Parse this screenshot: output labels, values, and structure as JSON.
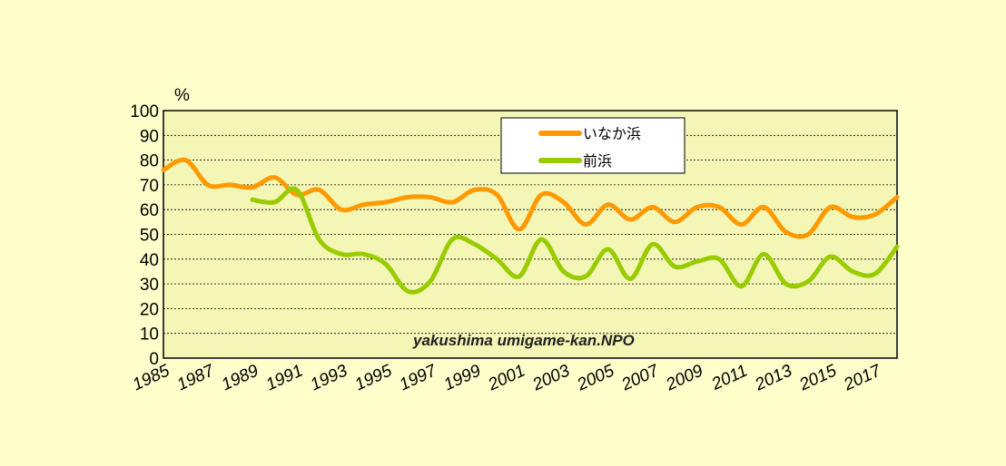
{
  "chart_data": {
    "type": "line",
    "title": "",
    "xlabel": "",
    "ylabel": "%",
    "ylim": [
      0,
      100
    ],
    "xlim": [
      1985,
      2018
    ],
    "yticks": [
      "0",
      "10",
      "20",
      "30",
      "40",
      "50",
      "60",
      "70",
      "80",
      "90",
      "100"
    ],
    "xticks": [
      "1985",
      "1987",
      "1989",
      "1991",
      "1993",
      "1995",
      "1997",
      "1999",
      "2001",
      "2003",
      "2005",
      "2007",
      "2009",
      "2011",
      "2013",
      "2015",
      "2017"
    ],
    "grid": true,
    "legend_position": "top-center",
    "watermark": "yakushima umigame-kan.NPO",
    "colors": {
      "background": "#ffffcc",
      "plot_area": "#f4f6b6"
    },
    "series": [
      {
        "name": "いなか浜",
        "color": "#ff9900",
        "x": [
          1985,
          1986,
          1987,
          1988,
          1989,
          1990,
          1991,
          1992,
          1993,
          1994,
          1995,
          1996,
          1997,
          1998,
          1999,
          2000,
          2001,
          2002,
          2003,
          2004,
          2005,
          2006,
          2007,
          2008,
          2009,
          2010,
          2011,
          2012,
          2013,
          2014,
          2015,
          2016,
          2017,
          2018
        ],
        "values": [
          76,
          80,
          70,
          70,
          69,
          73,
          66,
          68,
          60,
          62,
          63,
          65,
          65,
          63,
          68,
          66,
          52,
          66,
          63,
          54,
          62,
          56,
          61,
          55,
          61,
          61,
          54,
          61,
          51,
          50,
          61,
          57,
          58,
          65
        ]
      },
      {
        "name": "前浜",
        "color": "#99cc00",
        "x": [
          1989,
          1990,
          1991,
          1992,
          1993,
          1994,
          1995,
          1996,
          1997,
          1998,
          1999,
          2000,
          2001,
          2002,
          2003,
          2004,
          2005,
          2006,
          2007,
          2008,
          2009,
          2010,
          2011,
          2012,
          2013,
          2014,
          2015,
          2016,
          2017,
          2018
        ],
        "values": [
          64,
          63,
          68,
          48,
          42,
          42,
          38,
          27,
          31,
          48,
          46,
          40,
          33,
          48,
          35,
          33,
          44,
          32,
          46,
          37,
          39,
          40,
          29,
          42,
          30,
          31,
          41,
          35,
          34,
          45
        ]
      }
    ]
  }
}
